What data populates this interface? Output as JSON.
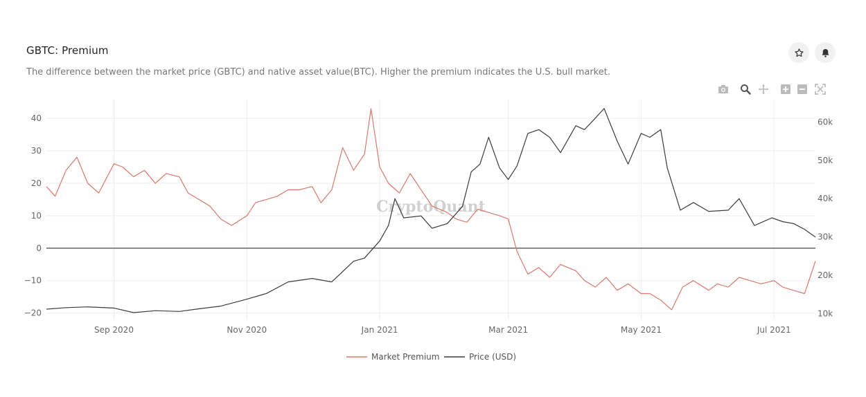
{
  "header": {
    "title": "GBTC: Premium",
    "subtitle": "The difference between the market price (GBTC) and native asset value(BTC). Higher the premium indicates the U.S. bull market.",
    "star_icon": "star-icon",
    "bell_icon": "bell-icon"
  },
  "modebar": {
    "icons": [
      "camera-icon",
      "zoom-icon",
      "pan-icon",
      "zoom-in-icon",
      "zoom-out-icon",
      "autoscale-icon"
    ]
  },
  "watermark": "CryptoQuant",
  "colors": {
    "premium": "#d9786a",
    "price": "#3a3a3a",
    "zero_line": "#555555",
    "grid": "#ededed",
    "tick_text": "#666666"
  },
  "chart_data": {
    "type": "line",
    "x_start": "2020-08-01",
    "x_end": "2021-07-20",
    "x_ticks": [
      {
        "date": "2020-09-01",
        "label": "Sep 2020"
      },
      {
        "date": "2020-11-01",
        "label": "Nov 2020"
      },
      {
        "date": "2021-01-01",
        "label": "Jan 2021"
      },
      {
        "date": "2021-03-01",
        "label": "Mar 2021"
      },
      {
        "date": "2021-05-01",
        "label": "May 2021"
      },
      {
        "date": "2021-07-01",
        "label": "Jul 2021"
      }
    ],
    "y_left": {
      "range": [
        -22,
        46
      ],
      "ticks": [
        -20,
        -10,
        0,
        10,
        20,
        30,
        40
      ],
      "tick_labels": [
        "−20",
        "−10",
        "0",
        "10",
        "20",
        "30",
        "40"
      ]
    },
    "y_right": {
      "range": [
        8500,
        66000
      ],
      "ticks": [
        10000,
        20000,
        30000,
        40000,
        50000,
        60000
      ],
      "tick_labels": [
        "10k",
        "20k",
        "30k",
        "40k",
        "50k",
        "60k"
      ]
    },
    "grid": true,
    "legend_position": "bottom-center",
    "series": [
      {
        "name": "Market Premium",
        "axis": "left",
        "x": [
          "2020-08-01",
          "2020-08-05",
          "2020-08-10",
          "2020-08-15",
          "2020-08-20",
          "2020-08-25",
          "2020-09-01",
          "2020-09-05",
          "2020-09-10",
          "2020-09-15",
          "2020-09-20",
          "2020-09-25",
          "2020-10-01",
          "2020-10-05",
          "2020-10-10",
          "2020-10-15",
          "2020-10-20",
          "2020-10-25",
          "2020-11-01",
          "2020-11-05",
          "2020-11-10",
          "2020-11-15",
          "2020-11-20",
          "2020-11-25",
          "2020-12-01",
          "2020-12-05",
          "2020-12-10",
          "2020-12-15",
          "2020-12-20",
          "2020-12-25",
          "2020-12-28",
          "2021-01-01",
          "2021-01-05",
          "2021-01-10",
          "2021-01-15",
          "2021-01-20",
          "2021-01-25",
          "2021-02-01",
          "2021-02-05",
          "2021-02-10",
          "2021-02-15",
          "2021-02-20",
          "2021-02-25",
          "2021-03-01",
          "2021-03-05",
          "2021-03-10",
          "2021-03-15",
          "2021-03-20",
          "2021-03-25",
          "2021-04-01",
          "2021-04-05",
          "2021-04-10",
          "2021-04-15",
          "2021-04-20",
          "2021-04-25",
          "2021-05-01",
          "2021-05-05",
          "2021-05-10",
          "2021-05-15",
          "2021-05-20",
          "2021-05-25",
          "2021-06-01",
          "2021-06-05",
          "2021-06-10",
          "2021-06-15",
          "2021-06-20",
          "2021-06-25",
          "2021-07-01",
          "2021-07-05",
          "2021-07-10",
          "2021-07-15",
          "2021-07-20"
        ],
        "values": [
          19,
          16,
          24,
          28,
          20,
          17,
          26,
          25,
          22,
          24,
          20,
          23,
          22,
          17,
          15,
          13,
          9,
          7,
          10,
          14,
          15,
          16,
          18,
          18,
          19,
          14,
          18,
          31,
          24,
          29,
          43,
          25,
          20,
          17,
          23,
          18,
          13,
          11,
          9,
          8,
          12,
          11,
          10,
          9,
          -1,
          -8,
          -6,
          -9,
          -5,
          -7,
          -10,
          -12,
          -9,
          -13,
          -11,
          -14,
          -14,
          -16,
          -19,
          -12,
          -10,
          -13,
          -11,
          -12,
          -9,
          -10,
          -11,
          -10,
          -12,
          -13,
          -14,
          -4
        ]
      },
      {
        "name": "Price (USD)",
        "axis": "right",
        "x": [
          "2020-08-01",
          "2020-08-10",
          "2020-08-20",
          "2020-09-01",
          "2020-09-10",
          "2020-09-20",
          "2020-10-01",
          "2020-10-10",
          "2020-10-20",
          "2020-11-01",
          "2020-11-10",
          "2020-11-20",
          "2020-12-01",
          "2020-12-10",
          "2020-12-20",
          "2020-12-25",
          "2021-01-01",
          "2021-01-05",
          "2021-01-08",
          "2021-01-12",
          "2021-01-20",
          "2021-01-25",
          "2021-02-01",
          "2021-02-08",
          "2021-02-12",
          "2021-02-16",
          "2021-02-20",
          "2021-02-25",
          "2021-03-01",
          "2021-03-05",
          "2021-03-10",
          "2021-03-15",
          "2021-03-20",
          "2021-03-25",
          "2021-04-01",
          "2021-04-05",
          "2021-04-10",
          "2021-04-14",
          "2021-04-20",
          "2021-04-25",
          "2021-05-01",
          "2021-05-05",
          "2021-05-10",
          "2021-05-13",
          "2021-05-19",
          "2021-05-25",
          "2021-06-01",
          "2021-06-10",
          "2021-06-15",
          "2021-06-22",
          "2021-06-30",
          "2021-07-05",
          "2021-07-10",
          "2021-07-15",
          "2021-07-20"
        ],
        "values": [
          11200,
          11600,
          11800,
          11500,
          10300,
          10800,
          10600,
          11300,
          12000,
          13800,
          15300,
          18300,
          19200,
          18300,
          23700,
          24500,
          29000,
          33000,
          40000,
          35000,
          35500,
          32300,
          33500,
          38000,
          47000,
          49000,
          56000,
          48000,
          45000,
          48500,
          57000,
          58000,
          56000,
          52000,
          59000,
          58000,
          61000,
          63500,
          55000,
          49000,
          57000,
          56000,
          58000,
          48000,
          37000,
          39000,
          36700,
          37000,
          40000,
          33000,
          35000,
          34000,
          33500,
          32000,
          30000
        ]
      }
    ]
  }
}
